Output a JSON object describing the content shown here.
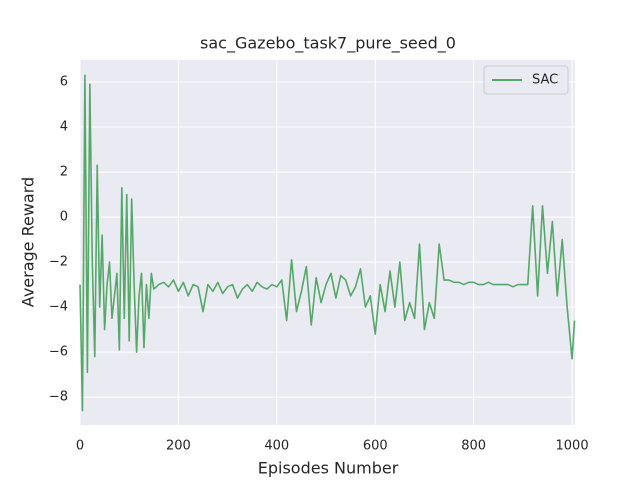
{
  "chart_data": {
    "type": "line",
    "title": "sac_Gazebo_task7_pure_seed_0",
    "xlabel": "Episodes Number",
    "ylabel": "Average Reward",
    "x": [
      0,
      5,
      10,
      15,
      20,
      25,
      30,
      35,
      40,
      45,
      50,
      55,
      60,
      65,
      70,
      75,
      80,
      85,
      90,
      95,
      100,
      105,
      110,
      115,
      120,
      125,
      130,
      135,
      140,
      145,
      150,
      160,
      170,
      180,
      190,
      200,
      210,
      220,
      230,
      240,
      250,
      260,
      270,
      280,
      290,
      300,
      310,
      320,
      330,
      340,
      350,
      360,
      370,
      380,
      390,
      400,
      410,
      420,
      430,
      440,
      450,
      460,
      470,
      480,
      490,
      500,
      510,
      520,
      530,
      540,
      550,
      560,
      570,
      580,
      590,
      600,
      610,
      620,
      630,
      640,
      650,
      660,
      670,
      680,
      690,
      700,
      710,
      720,
      730,
      740,
      750,
      760,
      770,
      780,
      790,
      800,
      810,
      820,
      830,
      840,
      850,
      860,
      870,
      880,
      890,
      900,
      910,
      920,
      930,
      940,
      950,
      960,
      970,
      980,
      990,
      1000,
      1005
    ],
    "series": [
      {
        "name": "SAC",
        "color": "#55a868",
        "values": [
          -3,
          -8.6,
          6.3,
          -6.9,
          5.9,
          -2,
          -6.2,
          2.3,
          -4,
          -0.8,
          -5,
          -3,
          -2,
          -4.5,
          -3.5,
          -2.5,
          -5.9,
          1.3,
          -4.5,
          1,
          -5.5,
          0.8,
          -3,
          -6,
          -3.5,
          -2.5,
          -5.8,
          -3,
          -4.5,
          -2.5,
          -3.2,
          -3,
          -2.9,
          -3.1,
          -2.8,
          -3.3,
          -2.9,
          -3.5,
          -3.0,
          -3.1,
          -4.2,
          -3.0,
          -3.3,
          -2.9,
          -3.4,
          -3.1,
          -3.0,
          -3.6,
          -3.2,
          -3.0,
          -3.3,
          -2.9,
          -3.1,
          -3.2,
          -3.0,
          -3.1,
          -2.8,
          -4.6,
          -1.9,
          -4.2,
          -3.3,
          -2.2,
          -4.8,
          -2.7,
          -3.8,
          -3.0,
          -2.5,
          -3.6,
          -2.6,
          -2.8,
          -3.5,
          -3.1,
          -2.3,
          -4.0,
          -3.5,
          -5.2,
          -3.0,
          -4.2,
          -2.4,
          -4.0,
          -2.0,
          -4.6,
          -3.8,
          -4.5,
          -1.2,
          -5.0,
          -3.8,
          -4.5,
          -1.2,
          -2.8,
          -2.8,
          -2.9,
          -2.9,
          -3.0,
          -2.9,
          -2.9,
          -3.0,
          -3.0,
          -2.9,
          -3.0,
          -3.0,
          -3.0,
          -3.0,
          -3.1,
          -3.0,
          -3.0,
          -3.0,
          0.5,
          -3.5,
          0.5,
          -2.5,
          -0.2,
          -3.5,
          -1.0,
          -4.0,
          -6.3,
          -4.6
        ]
      }
    ],
    "xlim": [
      0,
      1006
    ],
    "ylim": [
      -9.24,
      6.98
    ],
    "xticks": [
      0,
      200,
      400,
      600,
      800,
      1000
    ],
    "yticks": [
      {
        "value": -8,
        "label": "−8"
      },
      {
        "value": -6,
        "label": "−6"
      },
      {
        "value": -4,
        "label": "−4"
      },
      {
        "value": -2,
        "label": "−2"
      },
      0,
      2,
      4,
      6
    ],
    "grid": true,
    "legend": "upper right"
  }
}
